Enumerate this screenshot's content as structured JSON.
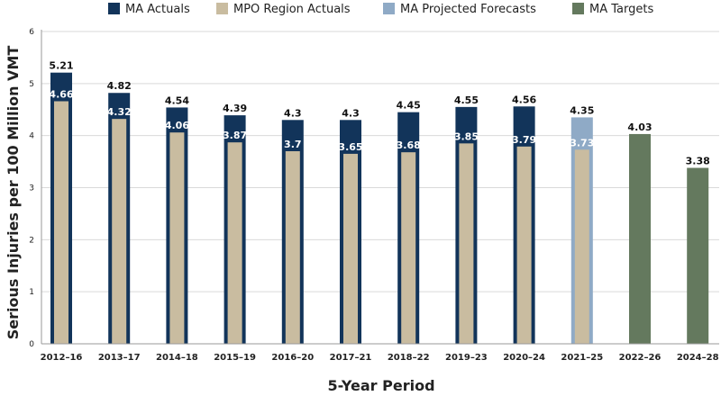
{
  "chart_data": {
    "type": "bar",
    "xlabel": "5-Year Period",
    "ylabel": "Serious Injuries per 100 Million VMT",
    "ylim": [
      0,
      6
    ],
    "yticks": [
      0,
      1,
      2,
      3,
      4,
      5,
      6
    ],
    "grid": true,
    "legend_position": "top",
    "categories": [
      "2012–16",
      "2013–17",
      "2014–18",
      "2015–19",
      "2016–20",
      "2017–21",
      "2018–22",
      "2019–23",
      "2020–24",
      "2021–25",
      "2022–26",
      "2024–28"
    ],
    "outer": [
      {
        "category": "2012–16",
        "value": 5.21,
        "label": "5.21",
        "series": "MA Actuals"
      },
      {
        "category": "2013–17",
        "value": 4.82,
        "label": "4.82",
        "series": "MA Actuals"
      },
      {
        "category": "2014–18",
        "value": 4.54,
        "label": "4.54",
        "series": "MA Actuals"
      },
      {
        "category": "2015–19",
        "value": 4.39,
        "label": "4.39",
        "series": "MA Actuals"
      },
      {
        "category": "2016–20",
        "value": 4.3,
        "label": "4.3",
        "series": "MA Actuals"
      },
      {
        "category": "2017–21",
        "value": 4.3,
        "label": "4.3",
        "series": "MA Actuals"
      },
      {
        "category": "2018–22",
        "value": 4.45,
        "label": "4.45",
        "series": "MA Actuals"
      },
      {
        "category": "2019–23",
        "value": 4.55,
        "label": "4.55",
        "series": "MA Actuals"
      },
      {
        "category": "2020–24",
        "value": 4.56,
        "label": "4.56",
        "series": "MA Actuals"
      },
      {
        "category": "2021–25",
        "value": 4.35,
        "label": "4.35",
        "series": "MA Projected Forecasts"
      },
      {
        "category": "2022–26",
        "value": 4.03,
        "label": "4.03",
        "series": "MA Targets"
      },
      {
        "category": "2024–28",
        "value": 3.38,
        "label": "3.38",
        "series": "MA Targets"
      }
    ],
    "inner": [
      {
        "category": "2012–16",
        "value": 4.66,
        "label": "4.66"
      },
      {
        "category": "2013–17",
        "value": 4.32,
        "label": "4.32"
      },
      {
        "category": "2014–18",
        "value": 4.06,
        "label": "4.06"
      },
      {
        "category": "2015–19",
        "value": 3.87,
        "label": "3.87"
      },
      {
        "category": "2016–20",
        "value": 3.7,
        "label": "3.7"
      },
      {
        "category": "2017–21",
        "value": 3.65,
        "label": "3.65"
      },
      {
        "category": "2018–22",
        "value": 3.68,
        "label": "3.68"
      },
      {
        "category": "2019–23",
        "value": 3.85,
        "label": "3.85"
      },
      {
        "category": "2020–24",
        "value": 3.79,
        "label": "3.79"
      },
      {
        "category": "2021–25",
        "value": 3.73,
        "label": "3.73"
      }
    ],
    "inner_series": "MPO Region Actuals",
    "legend": [
      {
        "name": "MA Actuals",
        "color": "#12345a"
      },
      {
        "name": "MPO Region Actuals",
        "color": "#c9bca0"
      },
      {
        "name": "MA Projected Forecasts",
        "color": "#8faac6"
      },
      {
        "name": "MA Targets",
        "color": "#64795e"
      }
    ]
  }
}
